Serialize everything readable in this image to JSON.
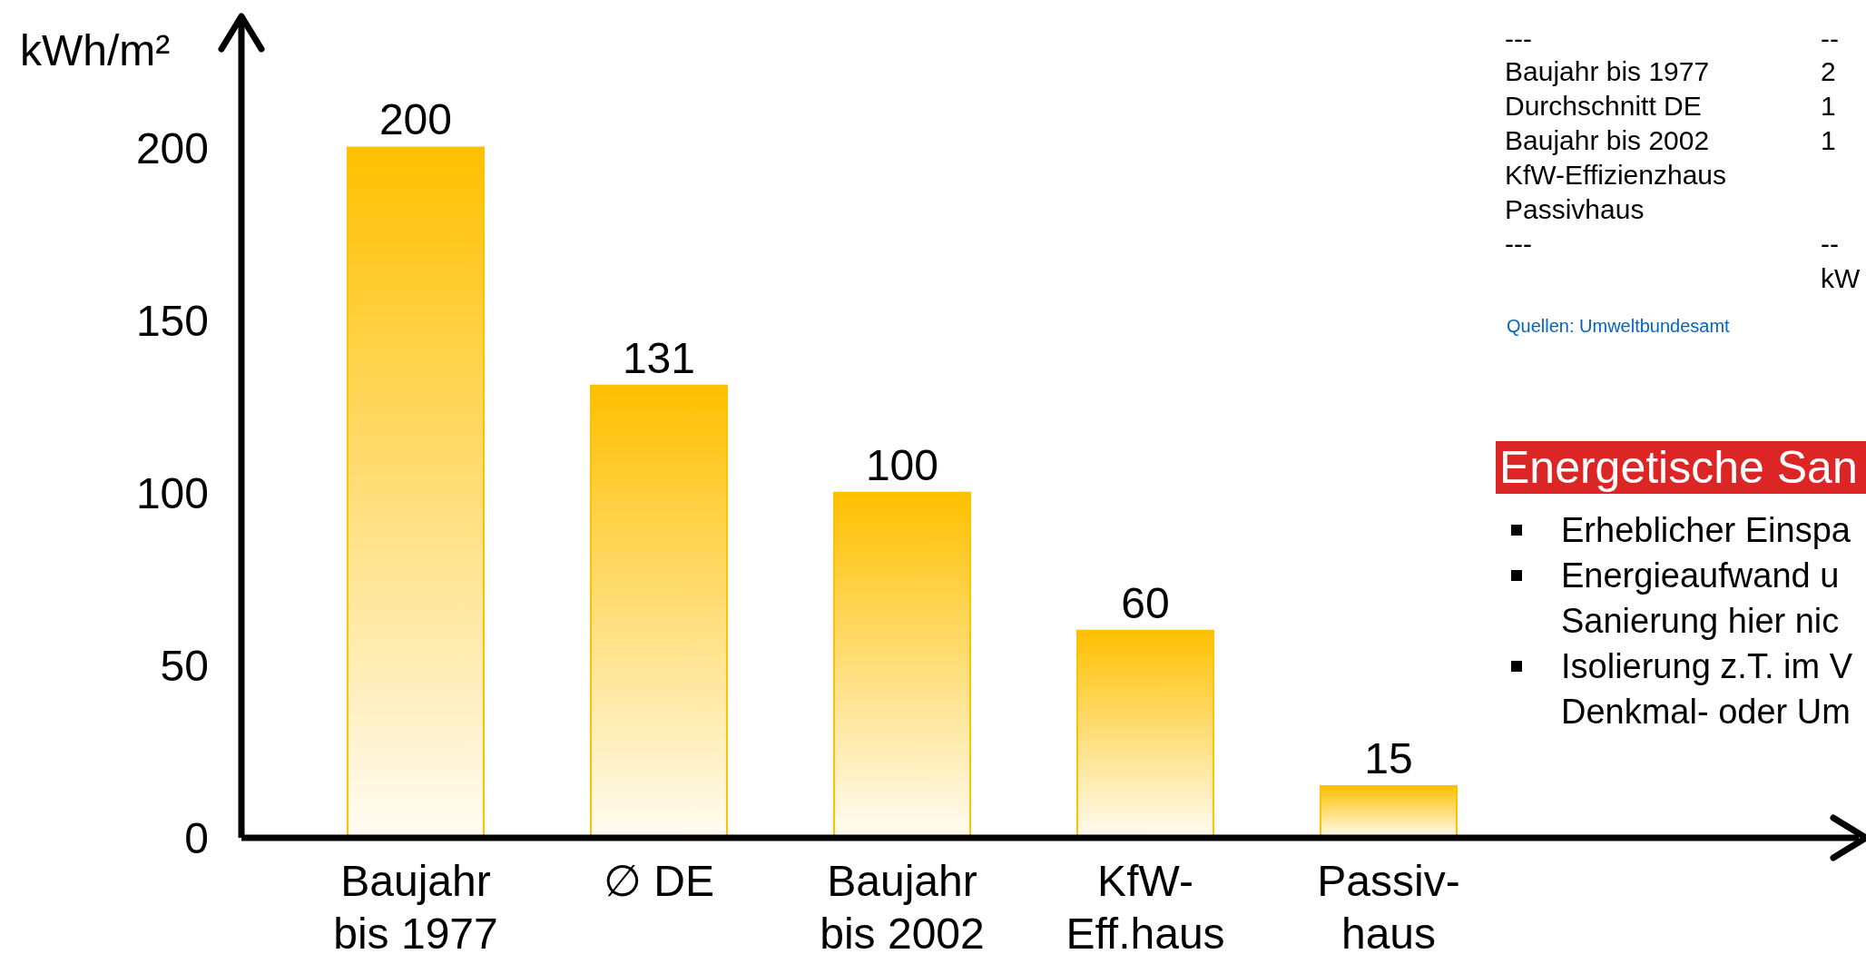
{
  "chart_data": {
    "type": "bar",
    "ylabel": "kWh/m²",
    "categories": [
      "Baujahr\nbis 1977",
      "∅ DE",
      "Baujahr\nbis 2002",
      "KfW-\nEff.haus",
      "Passiv-\nhaus"
    ],
    "values": [
      200,
      131,
      100,
      60,
      15
    ],
    "color": "#ffc000",
    "ylim": [
      0,
      238
    ],
    "yticks": [
      0,
      50,
      100,
      150,
      200
    ],
    "data_labels": true,
    "annotations": [
      "---",
      "Baujahr bis 1977",
      "Durchschnitt DE",
      "Baujahr bis 2002",
      "KfW-Effizienzhaus",
      "Passivhaus",
      "---",
      "--",
      "2",
      "1",
      "1",
      "--",
      "kW",
      "Quellen: Umweltbundesamt",
      "Energetische San",
      "Erheblicher Einspa",
      "Energieaufwand u",
      "Sanierung hier nic",
      "Isolierung z.T. im V",
      "Denkmal- oder Um"
    ]
  }
}
